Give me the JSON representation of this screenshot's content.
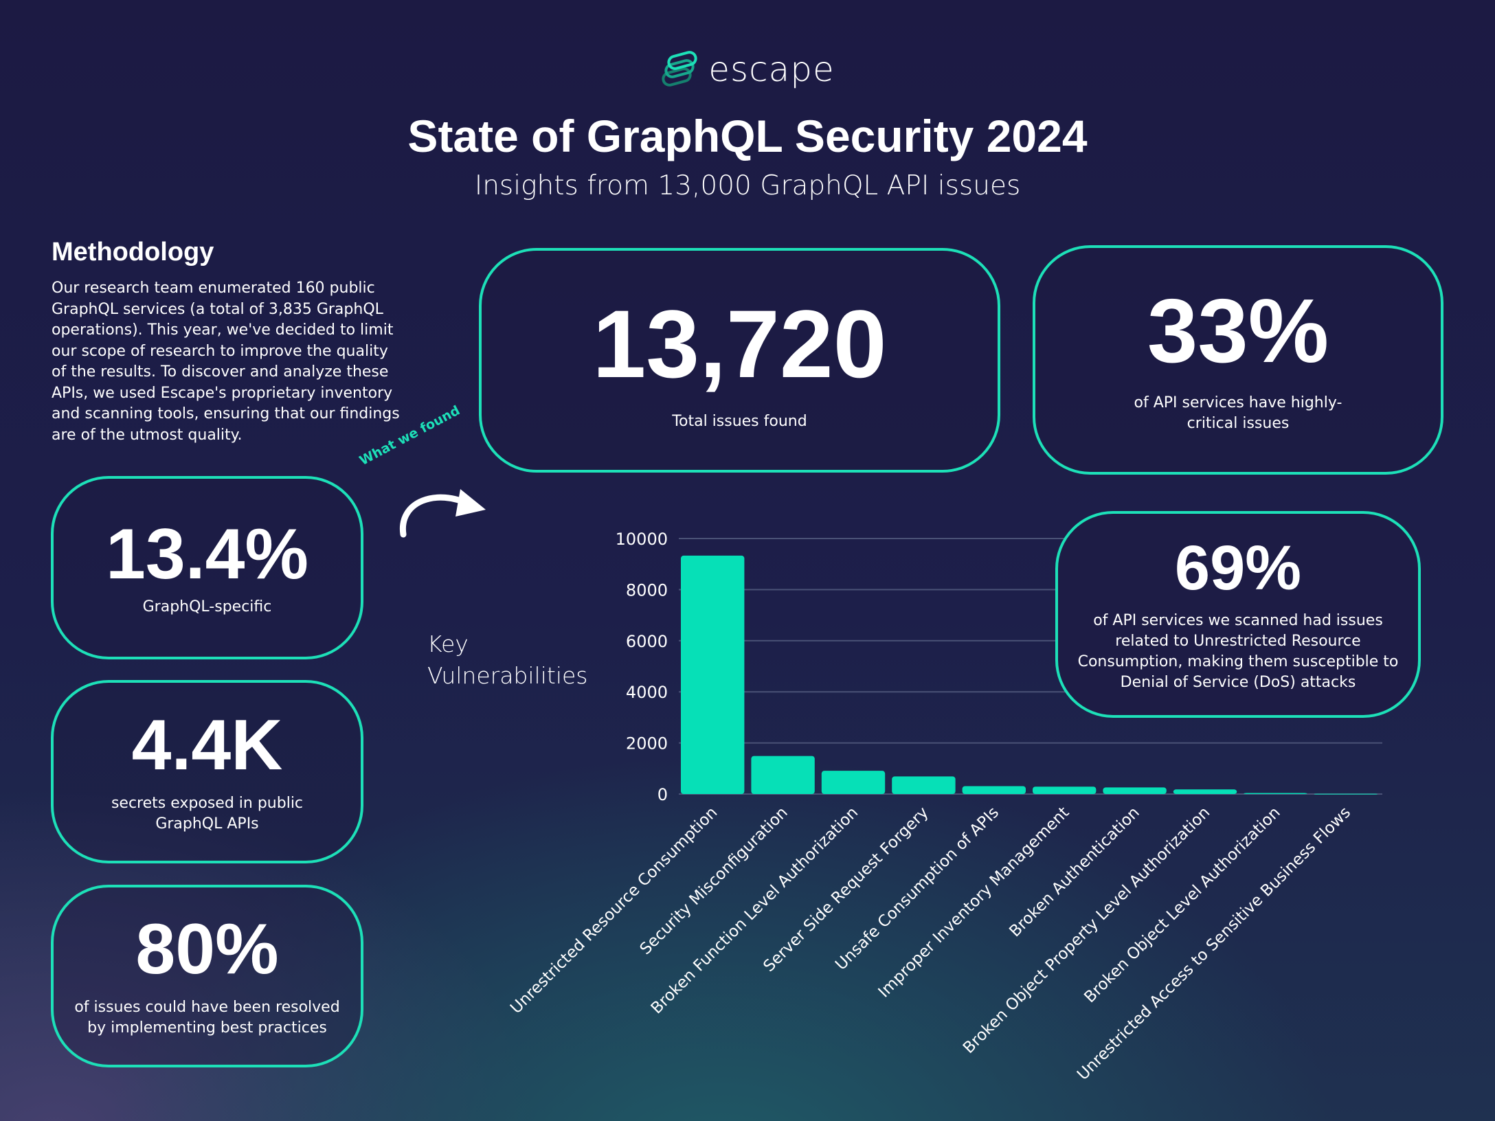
{
  "header": {
    "logo_text": "escape",
    "title": "State of GraphQL Security 2024",
    "subtitle": "Insights from 13,000 GraphQL API issues"
  },
  "methodology": {
    "heading": "Methodology",
    "text": "Our research team enumerated 160 public GraphQL services (a total of 3,835 GraphQL operations). This year, we've decided to limit our scope of research to improve the quality of the results. To discover and analyze these APIs, we used Escape's proprietary inventory and scanning tools, ensuring that our findings are of the utmost quality."
  },
  "stats": {
    "total": {
      "value": "13,720",
      "caption": "Total issues found"
    },
    "critical": {
      "value": "33%",
      "caption": "of API services have highly-critical issues"
    },
    "graphql_specific": {
      "value": "13.4%",
      "caption": "GraphQL-specific"
    },
    "secrets": {
      "value": "4.4K",
      "caption": "secrets exposed in public GraphQL APIs"
    },
    "best_practices": {
      "value": "80%",
      "caption": "of issues could have been resolved by implementing best practices"
    },
    "resource": {
      "value": "69%",
      "caption": "of API services we scanned had issues related to Unrestricted Resource Consumption, making them susceptible to Denial of Service (DoS) attacks"
    }
  },
  "annotation": "What we found",
  "colors": {
    "accent": "#1de0b8",
    "background": "#1c1a43"
  },
  "chart_data": {
    "type": "bar",
    "title": "Key Vulnerabilities",
    "categories": [
      "Unrestricted Resource Consumption",
      "Security Misconfiguration",
      "Broken Function Level Authorization",
      "Server Side Request Forgery",
      "Unsafe Consumption of APIs",
      "Improper Inventory Management",
      "Broken Authentication",
      "Broken Object Property Level Authorization",
      "Broken Object Level Authorization",
      "Unrestricted Access to Sensitive Business Flows"
    ],
    "values": [
      9330,
      1490,
      910,
      690,
      310,
      290,
      260,
      180,
      40,
      10
    ],
    "ylim": [
      0,
      10000
    ],
    "yticks": [
      0,
      2000,
      4000,
      6000,
      8000,
      10000
    ],
    "grid": true,
    "color": "#06e0b7"
  }
}
